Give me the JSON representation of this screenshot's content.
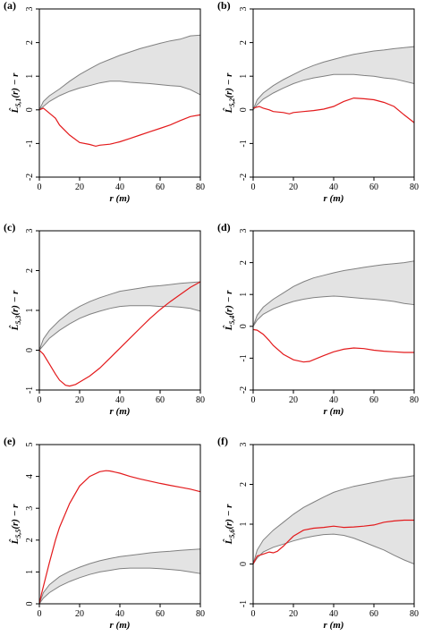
{
  "chart_data": [
    {
      "panel": "(a)",
      "type": "line",
      "xlabel": "r (m)",
      "ylabel": "L̂5,1(r) − r",
      "xlim": [
        0,
        80
      ],
      "ylim": [
        -2,
        3
      ],
      "xticks": [
        0,
        20,
        40,
        60,
        80
      ],
      "yticks": [
        -2,
        -1,
        0,
        1,
        2,
        3
      ],
      "envelope": {
        "x": [
          0,
          2,
          5,
          10,
          15,
          20,
          25,
          30,
          35,
          40,
          45,
          50,
          55,
          60,
          65,
          70,
          75,
          80
        ],
        "upper": [
          0,
          0.25,
          0.42,
          0.62,
          0.85,
          1.05,
          1.22,
          1.38,
          1.5,
          1.62,
          1.72,
          1.82,
          1.9,
          1.98,
          2.05,
          2.1,
          2.2,
          2.22
        ],
        "lower": [
          0,
          0.1,
          0.25,
          0.42,
          0.55,
          0.65,
          0.72,
          0.8,
          0.85,
          0.85,
          0.82,
          0.8,
          0.78,
          0.75,
          0.72,
          0.7,
          0.6,
          0.45
        ]
      },
      "series": [
        {
          "x": [
            0,
            2,
            5,
            8,
            10,
            15,
            20,
            25,
            28,
            30,
            35,
            40,
            45,
            50,
            55,
            60,
            65,
            70,
            75,
            80
          ],
          "values": [
            0,
            0.05,
            -0.1,
            -0.25,
            -0.45,
            -0.75,
            -0.97,
            -1.03,
            -1.08,
            -1.05,
            -1.02,
            -0.95,
            -0.85,
            -0.75,
            -0.65,
            -0.55,
            -0.45,
            -0.32,
            -0.2,
            -0.15
          ]
        }
      ]
    },
    {
      "panel": "(b)",
      "type": "line",
      "xlabel": "r (m)",
      "ylabel": "L̂5,2(r) − r",
      "xlim": [
        0,
        80
      ],
      "ylim": [
        -2,
        3
      ],
      "xticks": [
        0,
        20,
        40,
        60,
        80
      ],
      "yticks": [
        -2,
        -1,
        0,
        1,
        2,
        3
      ],
      "envelope": {
        "x": [
          0,
          2,
          5,
          10,
          15,
          20,
          25,
          30,
          35,
          40,
          45,
          50,
          55,
          60,
          65,
          70,
          75,
          80
        ],
        "upper": [
          0,
          0.3,
          0.5,
          0.72,
          0.9,
          1.05,
          1.2,
          1.32,
          1.42,
          1.5,
          1.58,
          1.65,
          1.7,
          1.75,
          1.78,
          1.82,
          1.85,
          1.88
        ],
        "lower": [
          0,
          0.15,
          0.32,
          0.5,
          0.65,
          0.78,
          0.88,
          0.95,
          1.0,
          1.05,
          1.05,
          1.05,
          1.02,
          1.0,
          0.95,
          0.92,
          0.85,
          0.78
        ]
      },
      "series": [
        {
          "x": [
            0,
            3,
            5,
            8,
            10,
            15,
            18,
            20,
            25,
            30,
            35,
            40,
            45,
            50,
            55,
            60,
            65,
            70,
            75,
            80
          ],
          "values": [
            0.05,
            0.1,
            0.05,
            0.0,
            -0.05,
            -0.08,
            -0.12,
            -0.08,
            -0.05,
            -0.02,
            0.02,
            0.1,
            0.25,
            0.35,
            0.33,
            0.3,
            0.22,
            0.1,
            -0.15,
            -0.38
          ]
        }
      ]
    },
    {
      "panel": "(c)",
      "type": "line",
      "xlabel": "r (m)",
      "ylabel": "L̂5,3(r) − r",
      "xlim": [
        0,
        80
      ],
      "ylim": [
        -1,
        3
      ],
      "xticks": [
        0,
        20,
        40,
        60,
        80
      ],
      "yticks": [
        -1,
        0,
        1,
        2,
        3
      ],
      "envelope": {
        "x": [
          0,
          2,
          5,
          10,
          15,
          20,
          25,
          30,
          35,
          40,
          45,
          50,
          55,
          60,
          65,
          70,
          75,
          80
        ],
        "upper": [
          0,
          0.28,
          0.5,
          0.75,
          0.95,
          1.1,
          1.22,
          1.32,
          1.4,
          1.48,
          1.52,
          1.56,
          1.6,
          1.62,
          1.65,
          1.68,
          1.7,
          1.72
        ],
        "lower": [
          0,
          0.12,
          0.3,
          0.5,
          0.66,
          0.8,
          0.9,
          0.98,
          1.05,
          1.1,
          1.12,
          1.12,
          1.12,
          1.1,
          1.1,
          1.08,
          1.05,
          0.98
        ]
      },
      "series": [
        {
          "x": [
            0,
            2,
            5,
            8,
            10,
            13,
            15,
            18,
            20,
            25,
            30,
            35,
            40,
            45,
            50,
            55,
            60,
            65,
            70,
            75,
            80
          ],
          "values": [
            0,
            -0.1,
            -0.35,
            -0.6,
            -0.75,
            -0.88,
            -0.9,
            -0.86,
            -0.8,
            -0.65,
            -0.45,
            -0.2,
            0.05,
            0.3,
            0.55,
            0.8,
            1.02,
            1.22,
            1.4,
            1.58,
            1.72
          ]
        }
      ]
    },
    {
      "panel": "(d)",
      "type": "line",
      "xlabel": "r (m)",
      "ylabel": "L̂5,4(r) − r",
      "xlim": [
        0,
        80
      ],
      "ylim": [
        -2,
        3
      ],
      "xticks": [
        0,
        20,
        40,
        60,
        80
      ],
      "yticks": [
        -2,
        -1,
        0,
        1,
        2,
        3
      ],
      "envelope": {
        "x": [
          0,
          2,
          5,
          10,
          15,
          20,
          25,
          30,
          35,
          40,
          45,
          50,
          55,
          60,
          65,
          70,
          75,
          80
        ],
        "upper": [
          0,
          0.35,
          0.6,
          0.85,
          1.05,
          1.25,
          1.4,
          1.52,
          1.6,
          1.68,
          1.75,
          1.8,
          1.85,
          1.9,
          1.94,
          1.97,
          2.0,
          2.05
        ],
        "lower": [
          0,
          0.2,
          0.38,
          0.55,
          0.68,
          0.78,
          0.85,
          0.9,
          0.93,
          0.95,
          0.93,
          0.9,
          0.87,
          0.85,
          0.82,
          0.78,
          0.72,
          0.68
        ]
      },
      "series": [
        {
          "x": [
            0,
            2,
            5,
            8,
            10,
            15,
            20,
            25,
            28,
            30,
            35,
            40,
            45,
            50,
            55,
            60,
            65,
            70,
            75,
            80
          ],
          "values": [
            -0.1,
            -0.12,
            -0.25,
            -0.45,
            -0.6,
            -0.88,
            -1.05,
            -1.12,
            -1.1,
            -1.05,
            -0.92,
            -0.8,
            -0.72,
            -0.68,
            -0.7,
            -0.75,
            -0.78,
            -0.8,
            -0.82,
            -0.82
          ]
        }
      ]
    },
    {
      "panel": "(e)",
      "type": "line",
      "xlabel": "r (m)",
      "ylabel": "L̂5,5(r) − r",
      "xlim": [
        0,
        80
      ],
      "ylim": [
        0,
        5
      ],
      "xticks": [
        0,
        20,
        40,
        60,
        80
      ],
      "yticks": [
        0,
        1,
        2,
        3,
        4,
        5
      ],
      "envelope": {
        "x": [
          0,
          2,
          5,
          10,
          15,
          20,
          25,
          30,
          35,
          40,
          45,
          50,
          55,
          60,
          65,
          70,
          75,
          80
        ],
        "upper": [
          0,
          0.35,
          0.6,
          0.85,
          1.02,
          1.15,
          1.26,
          1.35,
          1.42,
          1.48,
          1.52,
          1.56,
          1.6,
          1.63,
          1.65,
          1.68,
          1.7,
          1.72
        ],
        "lower": [
          0,
          0.18,
          0.35,
          0.55,
          0.7,
          0.82,
          0.92,
          1.0,
          1.05,
          1.1,
          1.12,
          1.12,
          1.12,
          1.1,
          1.08,
          1.05,
          1.0,
          0.95
        ]
      },
      "series": [
        {
          "x": [
            0,
            1,
            3,
            5,
            8,
            10,
            15,
            20,
            25,
            30,
            33,
            35,
            40,
            45,
            50,
            55,
            60,
            65,
            70,
            75,
            80
          ],
          "values": [
            0,
            0.3,
            0.8,
            1.3,
            2.0,
            2.4,
            3.15,
            3.7,
            4.0,
            4.15,
            4.18,
            4.17,
            4.1,
            4.0,
            3.92,
            3.85,
            3.78,
            3.72,
            3.66,
            3.6,
            3.52
          ]
        }
      ]
    },
    {
      "panel": "(f)",
      "type": "line",
      "xlabel": "r (m)",
      "ylabel": "L̂5,6(r) − r",
      "xlim": [
        0,
        80
      ],
      "ylim": [
        -1,
        3
      ],
      "xticks": [
        0,
        20,
        40,
        60,
        80
      ],
      "yticks": [
        -1,
        0,
        1,
        2,
        3
      ],
      "envelope": {
        "x": [
          0,
          2,
          5,
          10,
          15,
          20,
          25,
          30,
          35,
          40,
          45,
          50,
          55,
          60,
          65,
          70,
          75,
          80
        ],
        "upper": [
          0,
          0.35,
          0.6,
          0.85,
          1.05,
          1.25,
          1.42,
          1.55,
          1.68,
          1.8,
          1.88,
          1.95,
          2.0,
          2.05,
          2.1,
          2.15,
          2.18,
          2.22
        ],
        "lower": [
          0,
          0.15,
          0.3,
          0.42,
          0.5,
          0.58,
          0.65,
          0.7,
          0.74,
          0.75,
          0.72,
          0.65,
          0.55,
          0.45,
          0.35,
          0.22,
          0.1,
          0.0
        ]
      },
      "series": [
        {
          "x": [
            0,
            2,
            5,
            8,
            10,
            12,
            15,
            18,
            20,
            25,
            30,
            35,
            40,
            45,
            50,
            55,
            60,
            65,
            70,
            75,
            80
          ],
          "values": [
            0,
            0.2,
            0.25,
            0.3,
            0.28,
            0.32,
            0.45,
            0.6,
            0.7,
            0.85,
            0.9,
            0.92,
            0.95,
            0.92,
            0.93,
            0.95,
            0.98,
            1.05,
            1.08,
            1.1,
            1.1
          ]
        }
      ]
    }
  ]
}
